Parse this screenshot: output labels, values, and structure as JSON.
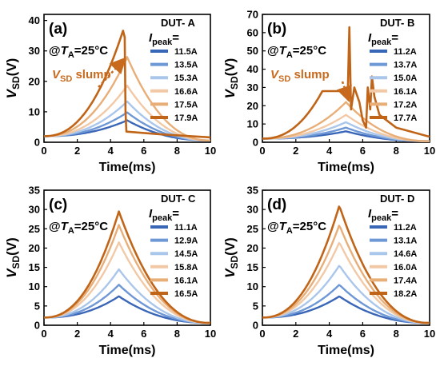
{
  "chart_data": [
    {
      "type": "line",
      "panel_label": "(a)",
      "condition": "@T_A=25°C",
      "condition_parts": {
        "prefix": "@",
        "var": "T",
        "sub": "A",
        "suffix": "=25°C"
      },
      "device_label": "DUT- A",
      "legend_title": {
        "main": "I",
        "sub": "peak",
        "suffix": "="
      },
      "annotation": {
        "main": "V",
        "sub": "SD",
        "suffix": " slump"
      },
      "xlabel": "Time(ms)",
      "ylabel": {
        "main": "V",
        "sub": "SD",
        "suffix": "(V)"
      },
      "xlim": [
        0,
        10
      ],
      "ylim": [
        0,
        42
      ],
      "xticks": [
        0,
        2,
        4,
        6,
        8,
        10
      ],
      "yticks": [
        0,
        10,
        20,
        30,
        40
      ],
      "series": [
        {
          "name": "11.5A",
          "color": "#3a66b8",
          "peak_x": 5.0,
          "peak_y": 7.2
        },
        {
          "name": "13.5A",
          "color": "#6e97d6",
          "peak_x": 5.0,
          "peak_y": 9.8
        },
        {
          "name": "15.3A",
          "color": "#aac6ea",
          "peak_x": 5.0,
          "peak_y": 13.4
        },
        {
          "name": "16.6A",
          "color": "#f2c9a6",
          "peak_x": 5.0,
          "peak_y": 18.6
        },
        {
          "name": "17.5A",
          "color": "#e8ae78",
          "peak_x": 5.0,
          "peak_y": 28.0
        },
        {
          "name": "17.9A",
          "color": "#c06418",
          "peak_x": 4.8,
          "peak_y": 37.5
        }
      ]
    },
    {
      "type": "line",
      "panel_label": "(b)",
      "condition": "@T_A=25°C",
      "condition_parts": {
        "prefix": "@",
        "var": "T",
        "sub": "A",
        "suffix": "=25°C"
      },
      "device_label": "DUT- B",
      "legend_title": {
        "main": "I",
        "sub": "peak",
        "suffix": "="
      },
      "annotation": {
        "main": "V",
        "sub": "SD",
        "suffix": " slump"
      },
      "xlabel": "Time(ms)",
      "ylabel": {
        "main": "V",
        "sub": "SD",
        "suffix": "(V)"
      },
      "xlim": [
        0,
        10
      ],
      "ylim": [
        0,
        70
      ],
      "xticks": [
        0,
        2,
        4,
        6,
        8,
        10
      ],
      "yticks": [
        0,
        10,
        20,
        30,
        40,
        50,
        60,
        70
      ],
      "series": [
        {
          "name": "11.2A",
          "color": "#3a66b8",
          "peak_x": 5.0,
          "peak_y": 6
        },
        {
          "name": "13.7A",
          "color": "#6e97d6",
          "peak_x": 5.0,
          "peak_y": 8
        },
        {
          "name": "15.0A",
          "color": "#aac6ea",
          "peak_x": 5.0,
          "peak_y": 11
        },
        {
          "name": "16.1A",
          "color": "#f2c9a6",
          "peak_x": 5.0,
          "peak_y": 15
        },
        {
          "name": "17.2A",
          "color": "#e8ae78",
          "peak_x": 5.0,
          "peak_y": 22
        },
        {
          "name": "17.7A",
          "color": "#c06418",
          "peak_x": 5.2,
          "peak_y": 63
        }
      ]
    },
    {
      "type": "line",
      "panel_label": "(c)",
      "condition": "@T_A=25°C",
      "condition_parts": {
        "prefix": "@",
        "var": "T",
        "sub": "A",
        "suffix": "=25°C"
      },
      "device_label": "DUT- C",
      "legend_title": {
        "main": "I",
        "sub": "peak",
        "suffix": "="
      },
      "xlabel": "Time(ms)",
      "ylabel": {
        "main": "V",
        "sub": "SD",
        "suffix": "(V)"
      },
      "xlim": [
        0,
        10
      ],
      "ylim": [
        0,
        35
      ],
      "xticks": [
        0,
        2,
        4,
        6,
        8,
        10
      ],
      "yticks": [
        0,
        5,
        10,
        15,
        20,
        25,
        30,
        35
      ],
      "series": [
        {
          "name": "11.1A",
          "color": "#3a66b8",
          "peak_x": 4.5,
          "peak_y": 7.5
        },
        {
          "name": "12.9A",
          "color": "#6e97d6",
          "peak_x": 4.5,
          "peak_y": 10.5
        },
        {
          "name": "14.5A",
          "color": "#aac6ea",
          "peak_x": 4.5,
          "peak_y": 14.5
        },
        {
          "name": "15.8A",
          "color": "#f2c9a6",
          "peak_x": 4.5,
          "peak_y": 21.5
        },
        {
          "name": "16.1A",
          "color": "#e8ae78",
          "peak_x": 4.5,
          "peak_y": 26.0
        },
        {
          "name": "16.5A",
          "color": "#c06418",
          "peak_x": 4.5,
          "peak_y": 29.5
        }
      ]
    },
    {
      "type": "line",
      "panel_label": "(d)",
      "condition": "@T_A=25°C",
      "condition_parts": {
        "prefix": "@",
        "var": "T",
        "sub": "A",
        "suffix": "=25°C"
      },
      "device_label": "DUT- D",
      "legend_title": {
        "main": "I",
        "sub": "peak",
        "suffix": "="
      },
      "xlabel": "Time(ms)",
      "ylabel": {
        "main": "V",
        "sub": "SD",
        "suffix": "(V)"
      },
      "xlim": [
        0,
        10
      ],
      "ylim": [
        0,
        35
      ],
      "xticks": [
        0,
        2,
        4,
        6,
        8,
        10
      ],
      "yticks": [
        0,
        5,
        10,
        15,
        20,
        25,
        30,
        35
      ],
      "series": [
        {
          "name": "11.2A",
          "color": "#3a66b8",
          "peak_x": 4.6,
          "peak_y": 7.5
        },
        {
          "name": "13.1A",
          "color": "#6e97d6",
          "peak_x": 4.6,
          "peak_y": 10.5
        },
        {
          "name": "14.6A",
          "color": "#aac6ea",
          "peak_x": 4.6,
          "peak_y": 15.5
        },
        {
          "name": "16.0A",
          "color": "#f2c9a6",
          "peak_x": 4.6,
          "peak_y": 21.5
        },
        {
          "name": "17.4A",
          "color": "#e8ae78",
          "peak_x": 4.6,
          "peak_y": 26.0
        },
        {
          "name": "18.2A",
          "color": "#c06418",
          "peak_x": 4.6,
          "peak_y": 31.0
        }
      ]
    }
  ]
}
